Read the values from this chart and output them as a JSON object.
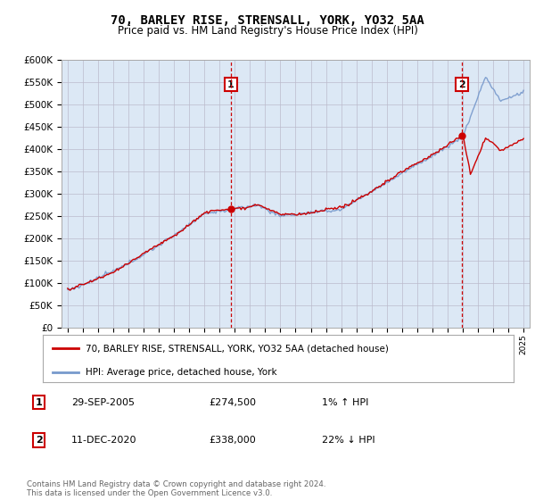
{
  "title_line1": "70, BARLEY RISE, STRENSALL, YORK, YO32 5AA",
  "title_line2": "Price paid vs. HM Land Registry's House Price Index (HPI)",
  "ylabel_ticks": [
    "£0",
    "£50K",
    "£100K",
    "£150K",
    "£200K",
    "£250K",
    "£300K",
    "£350K",
    "£400K",
    "£450K",
    "£500K",
    "£550K",
    "£600K"
  ],
  "ytick_values": [
    0,
    50000,
    100000,
    150000,
    200000,
    250000,
    300000,
    350000,
    400000,
    450000,
    500000,
    550000,
    600000
  ],
  "x_start_year": 1995,
  "x_end_year": 2025,
  "sale1_year": 2005.75,
  "sale1_price": 274500,
  "sale2_year": 2020.95,
  "sale2_price": 338000,
  "legend_line1": "70, BARLEY RISE, STRENSALL, YORK, YO32 5AA (detached house)",
  "legend_line2": "HPI: Average price, detached house, York",
  "table_row1": [
    "1",
    "29-SEP-2005",
    "£274,500",
    "1% ↑ HPI"
  ],
  "table_row2": [
    "2",
    "11-DEC-2020",
    "£338,000",
    "22% ↓ HPI"
  ],
  "footer": "Contains HM Land Registry data © Crown copyright and database right 2024.\nThis data is licensed under the Open Government Licence v3.0.",
  "hpi_color": "#7799cc",
  "price_color": "#cc0000",
  "bg_color": "#dce8f5",
  "grid_color": "#bbbbcc",
  "marker_line_color": "#cc0000",
  "sale_dot_color": "#cc0000"
}
